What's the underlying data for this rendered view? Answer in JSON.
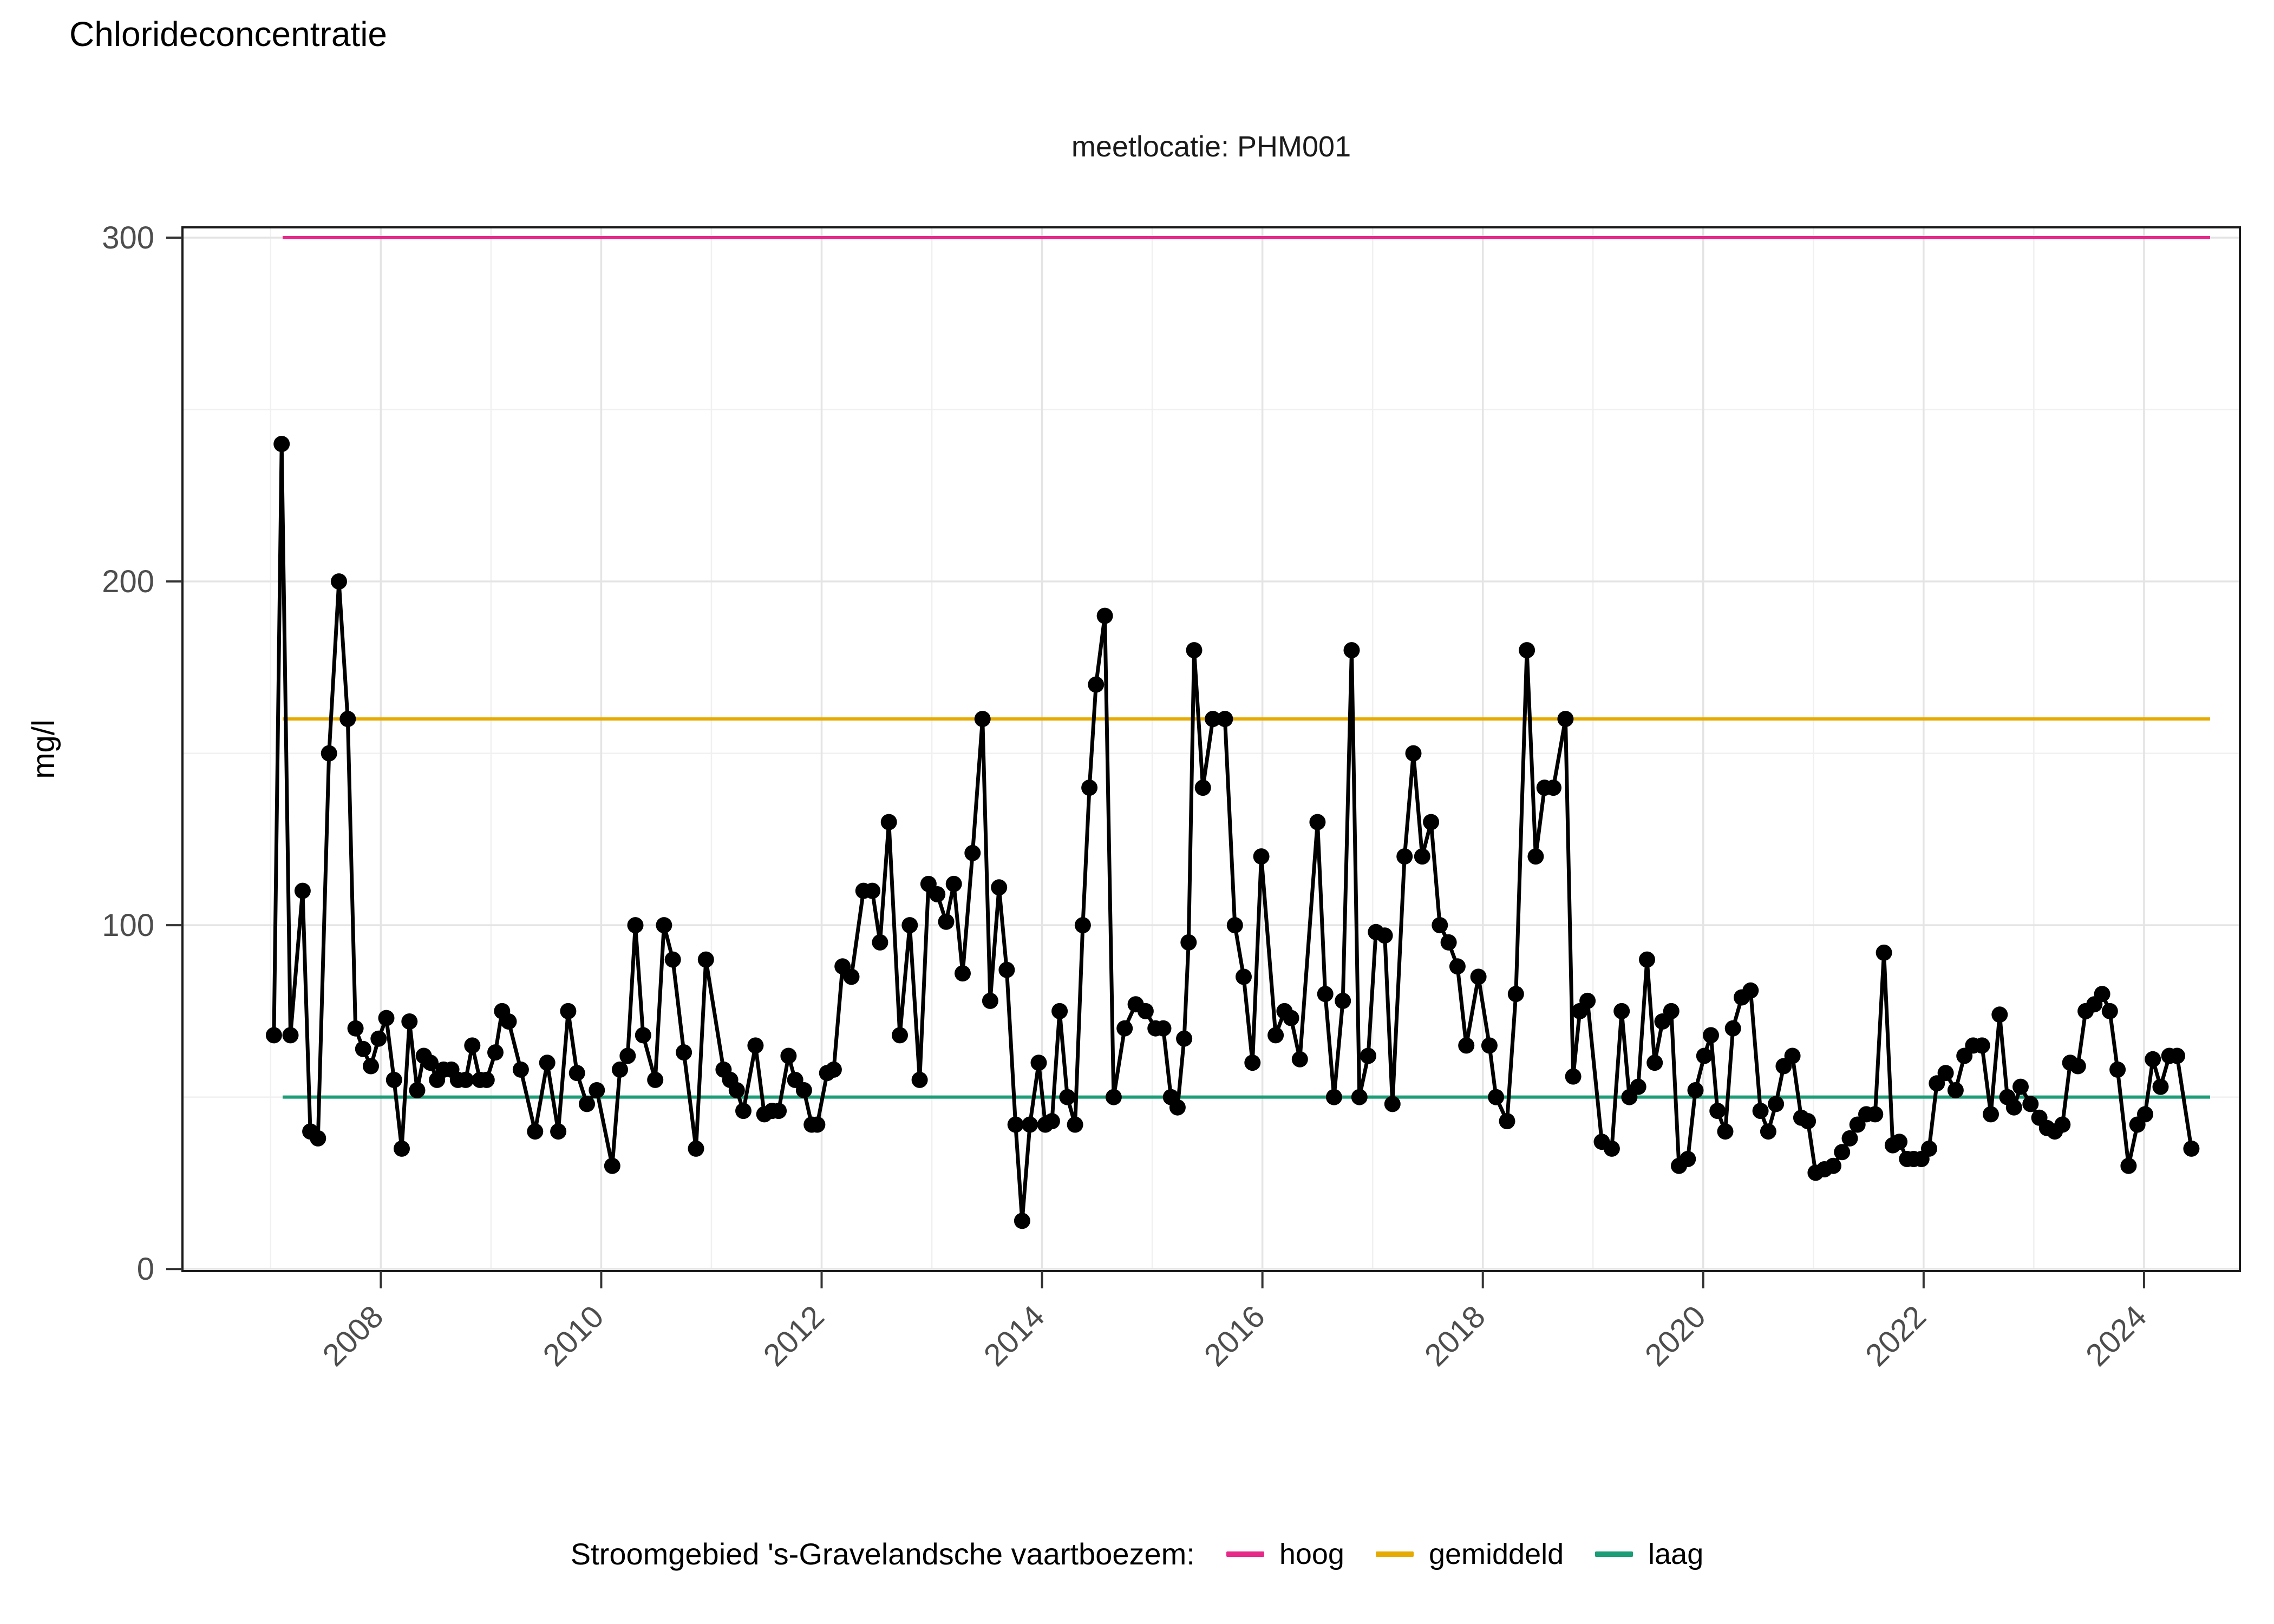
{
  "page": {
    "title": "Chlorideconcentratie"
  },
  "chart": {
    "subtitle": "meetlocatie: PHM001",
    "y_axis_label": "mg/l"
  },
  "legend": {
    "title": "Stroomgebied 's-Gravelandsche vaartboezem:",
    "items": [
      {
        "label": "hoog",
        "color": "#E7298A"
      },
      {
        "label": "gemiddeld",
        "color": "#E6AB02"
      },
      {
        "label": "laag",
        "color": "#1B9E77"
      }
    ]
  },
  "chart_data": {
    "type": "line",
    "title": "Chlorideconcentratie",
    "subtitle": "meetlocatie: PHM001",
    "xlabel": "",
    "ylabel": "mg/l",
    "xlim": [
      2006.2,
      2024.87
    ],
    "ylim": [
      -0.6,
      303
    ],
    "x_major_ticks": [
      2008,
      2010,
      2012,
      2014,
      2016,
      2018,
      2020,
      2022,
      2024
    ],
    "x_minor_ticks": [
      2007,
      2009,
      2011,
      2013,
      2015,
      2017,
      2019,
      2021,
      2023
    ],
    "y_major_ticks": [
      0,
      100,
      200,
      300
    ],
    "y_minor_ticks": [
      50,
      150,
      250
    ],
    "grid": true,
    "legend_position": "bottom",
    "point_color": "#000000",
    "line_color": "#000000",
    "reference_lines": [
      {
        "name": "hoog",
        "value": 300,
        "color": "#E7298A"
      },
      {
        "name": "gemiddeld",
        "value": 160,
        "color": "#E6AB02"
      },
      {
        "name": "laag",
        "value": 50,
        "color": "#1B9E77"
      }
    ],
    "series": [
      {
        "name": "chlorideconcentratie PHM001",
        "points": [
          [
            2007.03,
            68
          ],
          [
            2007.1,
            240
          ],
          [
            2007.18,
            68
          ],
          [
            2007.29,
            110
          ],
          [
            2007.36,
            40
          ],
          [
            2007.43,
            38
          ],
          [
            2007.53,
            150
          ],
          [
            2007.62,
            200
          ],
          [
            2007.7,
            160
          ],
          [
            2007.77,
            70
          ],
          [
            2007.84,
            64
          ],
          [
            2007.91,
            59
          ],
          [
            2007.98,
            67
          ],
          [
            2008.05,
            73
          ],
          [
            2008.12,
            55
          ],
          [
            2008.19,
            35
          ],
          [
            2008.26,
            72
          ],
          [
            2008.33,
            52
          ],
          [
            2008.39,
            62
          ],
          [
            2008.45,
            60
          ],
          [
            2008.51,
            55
          ],
          [
            2008.57,
            58
          ],
          [
            2008.64,
            58
          ],
          [
            2008.7,
            55
          ],
          [
            2008.77,
            55
          ],
          [
            2008.83,
            65
          ],
          [
            2008.9,
            55
          ],
          [
            2008.96,
            55
          ],
          [
            2009.04,
            63
          ],
          [
            2009.1,
            75
          ],
          [
            2009.16,
            72
          ],
          [
            2009.27,
            58
          ],
          [
            2009.4,
            40
          ],
          [
            2009.51,
            60
          ],
          [
            2009.61,
            40
          ],
          [
            2009.7,
            75
          ],
          [
            2009.78,
            57
          ],
          [
            2009.87,
            48
          ],
          [
            2009.96,
            52
          ],
          [
            2010.1,
            30
          ],
          [
            2010.17,
            58
          ],
          [
            2010.24,
            62
          ],
          [
            2010.31,
            100
          ],
          [
            2010.38,
            68
          ],
          [
            2010.49,
            55
          ],
          [
            2010.57,
            100
          ],
          [
            2010.65,
            90
          ],
          [
            2010.75,
            63
          ],
          [
            2010.86,
            35
          ],
          [
            2010.95,
            90
          ],
          [
            2011.11,
            58
          ],
          [
            2011.17,
            55
          ],
          [
            2011.23,
            52
          ],
          [
            2011.29,
            46
          ],
          [
            2011.4,
            65
          ],
          [
            2011.48,
            45
          ],
          [
            2011.55,
            46
          ],
          [
            2011.61,
            46
          ],
          [
            2011.7,
            62
          ],
          [
            2011.76,
            55
          ],
          [
            2011.84,
            52
          ],
          [
            2011.91,
            42
          ],
          [
            2011.96,
            42
          ],
          [
            2012.05,
            57
          ],
          [
            2012.11,
            58
          ],
          [
            2012.19,
            88
          ],
          [
            2012.27,
            85
          ],
          [
            2012.38,
            110
          ],
          [
            2012.46,
            110
          ],
          [
            2012.53,
            95
          ],
          [
            2012.61,
            130
          ],
          [
            2012.71,
            68
          ],
          [
            2012.8,
            100
          ],
          [
            2012.89,
            55
          ],
          [
            2012.97,
            112
          ],
          [
            2013.05,
            109
          ],
          [
            2013.13,
            101
          ],
          [
            2013.2,
            112
          ],
          [
            2013.28,
            86
          ],
          [
            2013.37,
            121
          ],
          [
            2013.46,
            160
          ],
          [
            2013.53,
            78
          ],
          [
            2013.61,
            111
          ],
          [
            2013.68,
            87
          ],
          [
            2013.76,
            42
          ],
          [
            2013.82,
            14
          ],
          [
            2013.89,
            42
          ],
          [
            2013.97,
            60
          ],
          [
            2014.03,
            42
          ],
          [
            2014.09,
            43
          ],
          [
            2014.16,
            75
          ],
          [
            2014.23,
            50
          ],
          [
            2014.3,
            42
          ],
          [
            2014.37,
            100
          ],
          [
            2014.43,
            140
          ],
          [
            2014.49,
            170
          ],
          [
            2014.57,
            190
          ],
          [
            2014.65,
            50
          ],
          [
            2014.75,
            70
          ],
          [
            2014.85,
            77
          ],
          [
            2014.94,
            75
          ],
          [
            2015.03,
            70
          ],
          [
            2015.1,
            70
          ],
          [
            2015.17,
            50
          ],
          [
            2015.23,
            47
          ],
          [
            2015.29,
            67
          ],
          [
            2015.33,
            95
          ],
          [
            2015.38,
            180
          ],
          [
            2015.46,
            140
          ],
          [
            2015.55,
            160
          ],
          [
            2015.66,
            160
          ],
          [
            2015.75,
            100
          ],
          [
            2015.83,
            85
          ],
          [
            2015.91,
            60
          ],
          [
            2015.99,
            120
          ],
          [
            2016.12,
            68
          ],
          [
            2016.2,
            75
          ],
          [
            2016.26,
            73
          ],
          [
            2016.34,
            61
          ],
          [
            2016.5,
            130
          ],
          [
            2016.57,
            80
          ],
          [
            2016.65,
            50
          ],
          [
            2016.73,
            78
          ],
          [
            2016.81,
            180
          ],
          [
            2016.88,
            50
          ],
          [
            2016.96,
            62
          ],
          [
            2017.03,
            98
          ],
          [
            2017.11,
            97
          ],
          [
            2017.18,
            48
          ],
          [
            2017.29,
            120
          ],
          [
            2017.37,
            150
          ],
          [
            2017.45,
            120
          ],
          [
            2017.53,
            130
          ],
          [
            2017.61,
            100
          ],
          [
            2017.69,
            95
          ],
          [
            2017.77,
            88
          ],
          [
            2017.85,
            65
          ],
          [
            2017.96,
            85
          ],
          [
            2018.06,
            65
          ],
          [
            2018.12,
            50
          ],
          [
            2018.22,
            43
          ],
          [
            2018.3,
            80
          ],
          [
            2018.4,
            180
          ],
          [
            2018.48,
            120
          ],
          [
            2018.56,
            140
          ],
          [
            2018.64,
            140
          ],
          [
            2018.75,
            160
          ],
          [
            2018.82,
            56
          ],
          [
            2018.88,
            75
          ],
          [
            2018.95,
            78
          ],
          [
            2019.08,
            37
          ],
          [
            2019.17,
            35
          ],
          [
            2019.26,
            75
          ],
          [
            2019.33,
            50
          ],
          [
            2019.41,
            53
          ],
          [
            2019.49,
            90
          ],
          [
            2019.56,
            60
          ],
          [
            2019.63,
            72
          ],
          [
            2019.71,
            75
          ],
          [
            2019.78,
            30
          ],
          [
            2019.86,
            32
          ],
          [
            2019.93,
            52
          ],
          [
            2020.01,
            62
          ],
          [
            2020.07,
            68
          ],
          [
            2020.13,
            46
          ],
          [
            2020.2,
            40
          ],
          [
            2020.27,
            70
          ],
          [
            2020.35,
            79
          ],
          [
            2020.43,
            81
          ],
          [
            2020.52,
            46
          ],
          [
            2020.59,
            40
          ],
          [
            2020.66,
            48
          ],
          [
            2020.73,
            59
          ],
          [
            2020.81,
            62
          ],
          [
            2020.89,
            44
          ],
          [
            2020.95,
            43
          ],
          [
            2021.02,
            28
          ],
          [
            2021.1,
            29
          ],
          [
            2021.18,
            30
          ],
          [
            2021.26,
            34
          ],
          [
            2021.33,
            38
          ],
          [
            2021.4,
            42
          ],
          [
            2021.48,
            45
          ],
          [
            2021.56,
            45
          ],
          [
            2021.64,
            92
          ],
          [
            2021.72,
            36
          ],
          [
            2021.78,
            37
          ],
          [
            2021.85,
            32
          ],
          [
            2021.91,
            32
          ],
          [
            2021.98,
            32
          ],
          [
            2022.05,
            35
          ],
          [
            2022.12,
            54
          ],
          [
            2022.2,
            57
          ],
          [
            2022.29,
            52
          ],
          [
            2022.37,
            62
          ],
          [
            2022.45,
            65
          ],
          [
            2022.53,
            65
          ],
          [
            2022.61,
            45
          ],
          [
            2022.69,
            74
          ],
          [
            2022.76,
            50
          ],
          [
            2022.82,
            47
          ],
          [
            2022.88,
            53
          ],
          [
            2022.97,
            48
          ],
          [
            2023.05,
            44
          ],
          [
            2023.12,
            41
          ],
          [
            2023.19,
            40
          ],
          [
            2023.26,
            42
          ],
          [
            2023.33,
            60
          ],
          [
            2023.4,
            59
          ],
          [
            2023.47,
            75
          ],
          [
            2023.55,
            77
          ],
          [
            2023.62,
            80
          ],
          [
            2023.69,
            75
          ],
          [
            2023.76,
            58
          ],
          [
            2023.86,
            30
          ],
          [
            2023.94,
            42
          ],
          [
            2024.01,
            45
          ],
          [
            2024.08,
            61
          ],
          [
            2024.15,
            53
          ],
          [
            2024.23,
            62
          ],
          [
            2024.3,
            62
          ],
          [
            2024.43,
            35
          ]
        ]
      }
    ]
  }
}
